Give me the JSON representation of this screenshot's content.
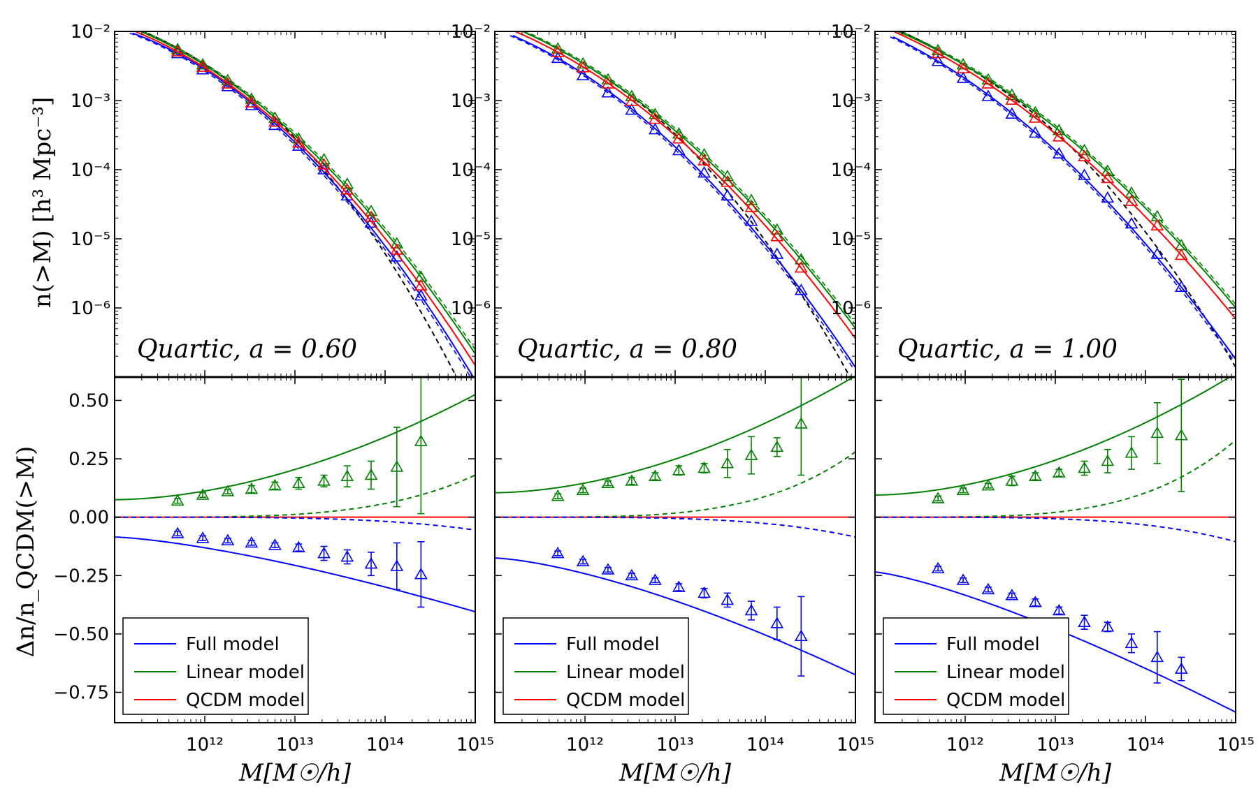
{
  "figure": {
    "top_ylabel": "n(>M)  [h³ Mpc⁻³]",
    "bottom_ylabel": "Δn/n_QCDM(>M)",
    "xlabel": "M[M☉/h]"
  },
  "chart_data": [
    {
      "type": "line",
      "annotation": "Quartic, a = 0.60",
      "a": 0.6,
      "top": {
        "yscale": "log",
        "xscale": "log",
        "xlim": [
          100000000000.0,
          1000000000000000.0
        ],
        "ylim": [
          1e-07,
          0.01
        ],
        "x_ticks": [
          "10¹²",
          "10¹³",
          "10¹⁴",
          "10¹⁵"
        ],
        "y_ticks": [
          "10⁻²",
          "10⁻³",
          "10⁻⁴",
          "10⁻⁵",
          "10⁻⁶"
        ],
        "points_x": [
          500000000000.0,
          950000000000.0,
          1800000000000.0,
          3300000000000.0,
          6000000000000.0,
          11000000000000.0,
          21000000000000.0,
          38000000000000.0,
          70000000000000.0,
          135000000000000.0,
          250000000000000.0
        ],
        "series": [
          {
            "model": "Full",
            "color": "#0000ff",
            "values": [
              0.0048,
              0.0028,
              0.0016,
              0.00085,
              0.00044,
              0.00022,
              0.0001,
              4.2e-05,
              1.7e-05,
              5.5e-06,
              1.5e-06
            ]
          },
          {
            "model": "Linear",
            "color": "#008000",
            "values": [
              0.0055,
              0.0033,
              0.00195,
              0.00105,
              0.00056,
              0.00028,
              0.00014,
              6.2e-05,
              2.5e-05,
              8.5e-06,
              2.8e-06
            ]
          },
          {
            "model": "QCDM",
            "color": "#ff0000",
            "values": [
              0.0051,
              0.00305,
              0.00175,
              0.00093,
              0.00049,
              0.000245,
              0.000118,
              5.1e-05,
              2.05e-05,
              6.9e-06,
              2.1e-06
            ]
          }
        ]
      },
      "bottom": {
        "ylim": [
          -0.88,
          0.6
        ],
        "y_ticks": [
          "0.50",
          "0.25",
          "0.00",
          "−0.25",
          "−0.50",
          "−0.75"
        ],
        "points_x": [
          500000000000.0,
          950000000000.0,
          1800000000000.0,
          3300000000000.0,
          6000000000000.0,
          11000000000000.0,
          21000000000000.0,
          38000000000000.0,
          70000000000000.0,
          135000000000000.0,
          250000000000000.0
        ],
        "full_points": [
          -0.07,
          -0.09,
          -0.1,
          -0.11,
          -0.12,
          -0.13,
          -0.155,
          -0.17,
          -0.2,
          -0.21,
          -0.245
        ],
        "full_err": [
          0.01,
          0.01,
          0.01,
          0.01,
          0.01,
          0.015,
          0.03,
          0.03,
          0.05,
          0.1,
          0.14
        ],
        "linear_points": [
          0.07,
          0.095,
          0.11,
          0.12,
          0.135,
          0.145,
          0.155,
          0.175,
          0.18,
          0.215,
          0.325
        ],
        "linear_err": [
          0.01,
          0.01,
          0.01,
          0.015,
          0.015,
          0.025,
          0.025,
          0.045,
          0.06,
          0.17,
          0.31
        ],
        "full_curve": {
          "c0": -0.085,
          "cA": -0.32,
          "p": 1.4
        },
        "linear_curve": {
          "c0": 0.075,
          "cA": 0.45,
          "p": 1.8
        },
        "linear_dashed": {
          "cA": 0.18,
          "p": 1.7
        },
        "full_dashed": {
          "cA": -0.055,
          "p": 1.7
        }
      }
    },
    {
      "type": "line",
      "annotation": "Quartic, a = 0.80",
      "a": 0.8,
      "top": {
        "yscale": "log",
        "xscale": "log",
        "xlim": [
          100000000000.0,
          1000000000000000.0
        ],
        "ylim": [
          1e-07,
          0.01
        ],
        "x_ticks": [
          "10¹²",
          "10¹³",
          "10¹⁴",
          "10¹⁵"
        ],
        "y_ticks": [
          "10⁻²",
          "10⁻³",
          "10⁻⁴",
          "10⁻⁵",
          "10⁻⁶"
        ],
        "points_x": [
          500000000000.0,
          950000000000.0,
          1800000000000.0,
          3300000000000.0,
          6000000000000.0,
          11000000000000.0,
          21000000000000.0,
          38000000000000.0,
          70000000000000.0,
          135000000000000.0,
          250000000000000.0
        ],
        "series": [
          {
            "model": "Full",
            "color": "#0000ff",
            "values": [
              0.0041,
              0.0023,
              0.0013,
              0.00073,
              0.00038,
              0.00019,
              9e-05,
              4.2e-05,
              1.8e-05,
              6e-06,
              1.8e-06
            ]
          },
          {
            "model": "Linear",
            "color": "#008000",
            "values": [
              0.0056,
              0.0034,
              0.002,
              0.00115,
              0.00063,
              0.00033,
              0.000165,
              8e-05,
              3.6e-05,
              1.35e-05,
              5e-06
            ]
          },
          {
            "model": "QCDM",
            "color": "#ff0000",
            "values": [
              0.005,
              0.003,
              0.00175,
              0.00098,
              0.00054,
              0.00028,
              0.000135,
              6.6e-05,
              2.85e-05,
              1.08e-05,
              3.8e-06
            ]
          }
        ]
      },
      "bottom": {
        "ylim": [
          -0.88,
          0.6
        ],
        "y_ticks": [
          "0.50",
          "0.25",
          "0.00",
          "−0.25",
          "−0.50",
          "−0.75"
        ],
        "points_x": [
          500000000000.0,
          950000000000.0,
          1800000000000.0,
          3300000000000.0,
          6000000000000.0,
          11000000000000.0,
          21000000000000.0,
          38000000000000.0,
          70000000000000.0,
          135000000000000.0,
          250000000000000.0
        ],
        "full_points": [
          -0.155,
          -0.19,
          -0.225,
          -0.25,
          -0.27,
          -0.3,
          -0.325,
          -0.355,
          -0.4,
          -0.455,
          -0.51
        ],
        "full_err": [
          0.01,
          0.01,
          0.01,
          0.01,
          0.01,
          0.015,
          0.02,
          0.03,
          0.04,
          0.07,
          0.17
        ],
        "linear_points": [
          0.09,
          0.115,
          0.145,
          0.155,
          0.175,
          0.2,
          0.21,
          0.23,
          0.265,
          0.3,
          0.4
        ],
        "linear_err": [
          0.01,
          0.01,
          0.01,
          0.015,
          0.015,
          0.02,
          0.02,
          0.06,
          0.08,
          0.04,
          0.22
        ],
        "full_curve": {
          "c0": -0.175,
          "cA": -0.5,
          "p": 1.45
        },
        "linear_curve": {
          "c0": 0.105,
          "cA": 0.5,
          "p": 1.8
        },
        "linear_dashed": {
          "cA": 0.28,
          "p": 1.8
        },
        "full_dashed": {
          "cA": -0.085,
          "p": 1.8
        }
      }
    },
    {
      "type": "line",
      "annotation": "Quartic, a = 1.00",
      "a": 1.0,
      "top": {
        "yscale": "log",
        "xscale": "log",
        "xlim": [
          100000000000.0,
          1000000000000000.0
        ],
        "ylim": [
          1e-07,
          0.01
        ],
        "x_ticks": [
          "10¹²",
          "10¹³",
          "10¹⁴",
          "10¹⁵"
        ],
        "y_ticks": [
          "10⁻²",
          "10⁻³",
          "10⁻⁴",
          "10⁻⁵",
          "10⁻⁶"
        ],
        "points_x": [
          500000000000.0,
          950000000000.0,
          1800000000000.0,
          3300000000000.0,
          6000000000000.0,
          11000000000000.0,
          21000000000000.0,
          38000000000000.0,
          70000000000000.0,
          135000000000000.0,
          250000000000000.0
        ],
        "series": [
          {
            "model": "Full",
            "color": "#0000ff",
            "values": [
              0.0037,
              0.0021,
              0.00115,
              0.00064,
              0.00034,
              0.00017,
              8.3e-05,
              3.9e-05,
              1.65e-05,
              6e-06,
              2e-06
            ]
          },
          {
            "model": "Linear",
            "color": "#008000",
            "values": [
              0.0053,
              0.0033,
              0.002,
              0.0012,
              0.00067,
              0.00037,
              0.00019,
              9.5e-05,
              4.6e-05,
              2.1e-05,
              8e-06
            ]
          },
          {
            "model": "QCDM",
            "color": "#ff0000",
            "values": [
              0.0048,
              0.0029,
              0.00175,
              0.00102,
              0.00056,
              0.0003,
              0.000155,
              7.5e-05,
              3.5e-05,
              1.55e-05,
              5.8e-06
            ]
          }
        ]
      },
      "bottom": {
        "ylim": [
          -0.88,
          0.6
        ],
        "y_ticks": [
          "0.50",
          "0.25",
          "0.00",
          "−0.25",
          "−0.50",
          "−0.75"
        ],
        "points_x": [
          500000000000.0,
          950000000000.0,
          1800000000000.0,
          3300000000000.0,
          6000000000000.0,
          11000000000000.0,
          21000000000000.0,
          38000000000000.0,
          70000000000000.0,
          135000000000000.0,
          250000000000000.0
        ],
        "full_points": [
          -0.22,
          -0.27,
          -0.31,
          -0.335,
          -0.365,
          -0.4,
          -0.45,
          -0.47,
          -0.54,
          -0.6,
          -0.65
        ],
        "full_err": [
          0.01,
          0.01,
          0.01,
          0.01,
          0.015,
          0.015,
          0.03,
          0.02,
          0.04,
          0.11,
          0.05
        ],
        "linear_points": [
          0.08,
          0.115,
          0.135,
          0.155,
          0.175,
          0.19,
          0.21,
          0.24,
          0.275,
          0.36,
          0.35
        ],
        "linear_err": [
          0.01,
          0.01,
          0.01,
          0.02,
          0.015,
          0.015,
          0.03,
          0.05,
          0.07,
          0.13,
          0.24
        ],
        "full_curve": {
          "c0": -0.235,
          "cA": -0.6,
          "p": 1.3
        },
        "linear_curve": {
          "c0": 0.095,
          "cA": 0.52,
          "p": 1.8
        },
        "linear_dashed": {
          "cA": 0.33,
          "p": 1.8
        },
        "full_dashed": {
          "cA": -0.105,
          "p": 1.8
        }
      }
    }
  ],
  "legend": {
    "entries": [
      {
        "label": "Full model",
        "color": "#0000ff"
      },
      {
        "label": "Linear model",
        "color": "#008000"
      },
      {
        "label": "QCDM model",
        "color": "#ff0000"
      }
    ]
  },
  "colors": {
    "full": "#0000ff",
    "linear": "#008000",
    "qcdm": "#ff0000",
    "reference": "#000000"
  }
}
